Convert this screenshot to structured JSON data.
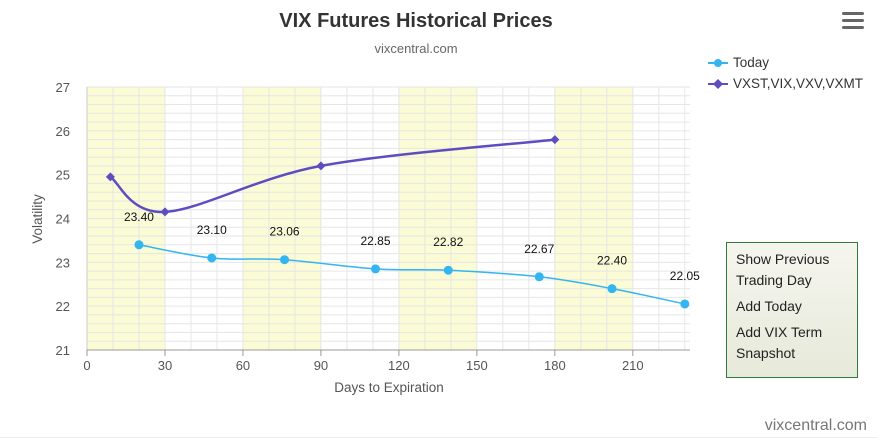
{
  "chart_data": {
    "type": "line",
    "title": "VIX Futures Historical Prices",
    "subtitle": "vixcentral.com",
    "xlabel": "Days to Expiration",
    "ylabel": "Volatility",
    "xlim": [
      0,
      232
    ],
    "ylim": [
      21,
      27
    ],
    "x_ticks": [
      "0",
      "30",
      "60",
      "90",
      "120",
      "150",
      "180",
      "210"
    ],
    "y_ticks": [
      "21",
      "22",
      "23",
      "24",
      "25",
      "26",
      "27"
    ],
    "series": [
      {
        "name": "Today",
        "color": "#33b5f0",
        "marker": "circle",
        "x": [
          20,
          48,
          76,
          111,
          139,
          174,
          202,
          230
        ],
        "y": [
          23.4,
          23.1,
          23.06,
          22.85,
          22.82,
          22.67,
          22.4,
          22.05
        ],
        "labels": [
          "23.40",
          "23.10",
          "23.06",
          "22.85",
          "22.82",
          "22.67",
          "22.40",
          "22.05"
        ]
      },
      {
        "name": "VXST,VIX,VXV,VXMT",
        "color": "#5d4dbf",
        "marker": "diamond",
        "x": [
          9,
          30,
          90,
          180
        ],
        "y": [
          24.95,
          24.15,
          25.2,
          25.8
        ]
      }
    ],
    "shaded_bands": [
      [
        0,
        30
      ],
      [
        60,
        90
      ],
      [
        120,
        150
      ],
      [
        180,
        210
      ]
    ],
    "grid": true,
    "legend_position": "top-right"
  },
  "menu": {
    "icon": "hamburger-menu-icon"
  },
  "side_panel": {
    "actions": [
      "Show Previous Trading Day",
      "Add Today",
      "Add VIX Term Snapshot"
    ]
  },
  "footer": {
    "credit": "vixcentral.com"
  },
  "colors": {
    "band": "#fbfbd5",
    "grid": "#e6e6e6",
    "panel_border": "#2e7d32"
  }
}
